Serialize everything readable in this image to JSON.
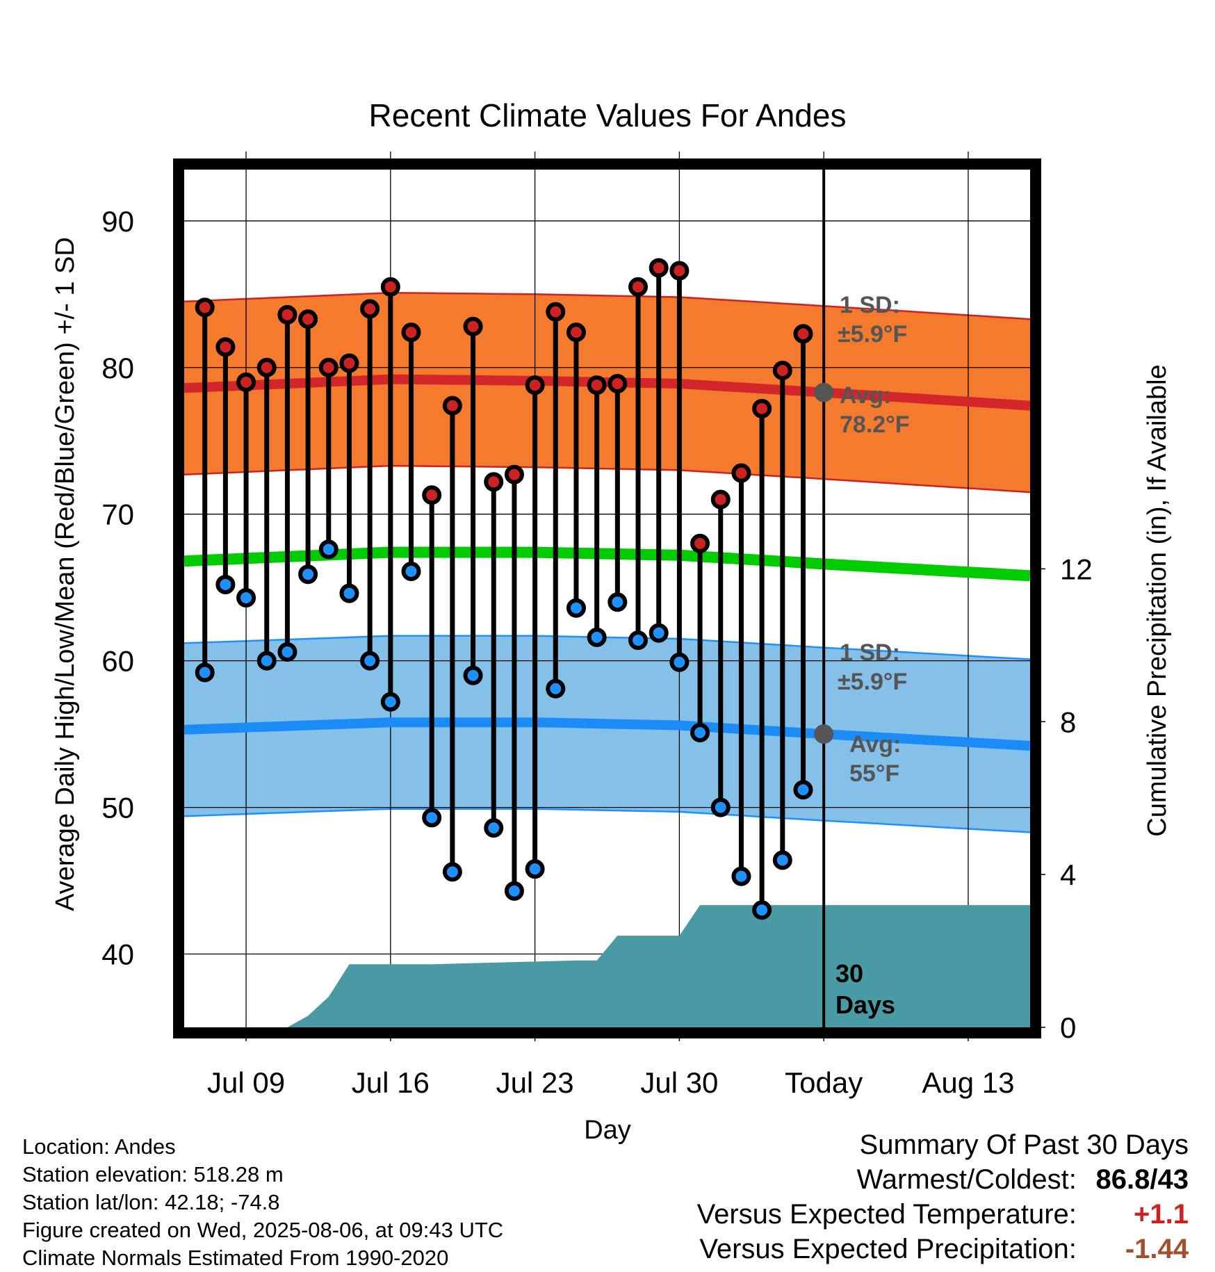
{
  "chart_data": {
    "type": "line",
    "title": "Recent Climate Values For Andes",
    "xlabel": "Day",
    "ylabel": "Average Daily High/Low/Mean (Red/Blue/Green) +/- 1 SD",
    "y2label": "Cumulative Precipitation (in), If Available",
    "ylim": [
      35,
      93.5
    ],
    "y_ticks": [
      40,
      50,
      60,
      70,
      80,
      90
    ],
    "y2lim": [
      0,
      22.45
    ],
    "y2_ticks": [
      0,
      4,
      8,
      12
    ],
    "x_tick_labels": [
      "Jul 09",
      "Jul 16",
      "Jul 23",
      "Jul 30",
      "Today",
      "Aug 13"
    ],
    "x_start": "2025-07-06",
    "x_end": "2025-08-16",
    "today": "2025-08-06",
    "grid": true,
    "daily_high": {
      "dates": [
        "2025-07-07",
        "2025-07-08",
        "2025-07-09",
        "2025-07-10",
        "2025-07-11",
        "2025-07-12",
        "2025-07-13",
        "2025-07-14",
        "2025-07-15",
        "2025-07-16",
        "2025-07-17",
        "2025-07-18",
        "2025-07-19",
        "2025-07-20",
        "2025-07-21",
        "2025-07-22",
        "2025-07-23",
        "2025-07-24",
        "2025-07-25",
        "2025-07-26",
        "2025-07-27",
        "2025-07-28",
        "2025-07-29",
        "2025-07-30",
        "2025-07-31",
        "2025-08-01",
        "2025-08-02",
        "2025-08-03",
        "2025-08-04",
        "2025-08-05"
      ],
      "values": [
        84.1,
        81.4,
        79.0,
        80.0,
        83.6,
        83.3,
        80.0,
        80.3,
        84.0,
        85.5,
        82.4,
        71.3,
        77.4,
        82.8,
        72.2,
        72.7,
        78.8,
        83.8,
        82.4,
        78.8,
        78.9,
        85.5,
        86.8,
        86.6,
        68.0,
        71.0,
        72.8,
        77.2,
        79.8,
        82.3
      ]
    },
    "daily_low": {
      "dates": [
        "2025-07-07",
        "2025-07-08",
        "2025-07-09",
        "2025-07-10",
        "2025-07-11",
        "2025-07-12",
        "2025-07-13",
        "2025-07-14",
        "2025-07-15",
        "2025-07-16",
        "2025-07-17",
        "2025-07-18",
        "2025-07-19",
        "2025-07-20",
        "2025-07-21",
        "2025-07-22",
        "2025-07-23",
        "2025-07-24",
        "2025-07-25",
        "2025-07-26",
        "2025-07-27",
        "2025-07-28",
        "2025-07-29",
        "2025-07-30",
        "2025-07-31",
        "2025-08-01",
        "2025-08-02",
        "2025-08-03",
        "2025-08-04",
        "2025-08-05"
      ],
      "values": [
        59.2,
        65.2,
        64.3,
        60.0,
        60.6,
        65.9,
        67.6,
        64.6,
        60.0,
        57.2,
        66.1,
        49.3,
        45.6,
        59.0,
        48.6,
        44.3,
        45.8,
        58.1,
        63.6,
        61.6,
        64.0,
        61.4,
        61.9,
        59.9,
        55.1,
        50.0,
        45.3,
        43.0,
        46.4,
        51.2
      ]
    },
    "normal_high": {
      "dates": [
        "2025-07-06",
        "2025-07-16",
        "2025-07-23",
        "2025-07-30",
        "2025-08-06",
        "2025-08-16"
      ],
      "values": [
        78.6,
        79.2,
        79.1,
        78.9,
        78.3,
        77.4
      ],
      "sd": 5.9
    },
    "normal_low": {
      "dates": [
        "2025-07-06",
        "2025-07-16",
        "2025-07-23",
        "2025-07-30",
        "2025-08-06",
        "2025-08-16"
      ],
      "values": [
        55.3,
        55.8,
        55.8,
        55.6,
        55.0,
        54.2
      ],
      "sd": 5.9
    },
    "normal_mean": {
      "dates": [
        "2025-07-06",
        "2025-07-16",
        "2025-07-23",
        "2025-07-30",
        "2025-08-06",
        "2025-08-16"
      ],
      "values": [
        66.8,
        67.4,
        67.4,
        67.2,
        66.6,
        65.8
      ]
    },
    "cumulative_precip": {
      "dates": [
        "2025-07-08",
        "2025-07-10",
        "2025-07-11",
        "2025-07-12",
        "2025-07-13",
        "2025-07-14",
        "2025-07-18",
        "2025-07-25",
        "2025-07-26",
        "2025-07-27",
        "2025-07-30",
        "2025-07-31",
        "2025-08-06"
      ],
      "values": [
        0,
        0,
        0,
        0.3,
        0.8,
        1.65,
        1.65,
        1.75,
        1.75,
        2.4,
        2.4,
        3.2,
        3.2
      ]
    },
    "high_band_label": "1 SD:",
    "high_band_sd_label": "±5.9°F",
    "high_avg_label": "Avg:",
    "high_avg_value": "78.2°F",
    "low_band_label": "1 SD:",
    "low_band_sd_label": "±5.9°F",
    "low_avg_label": "Avg:",
    "low_avg_value": "55°F",
    "days_label": "30",
    "days_label2": "Days",
    "colors": {
      "high": "#cc2222",
      "high_band": "#f47a2e",
      "high_avg": "#d2262a",
      "low": "#1e90ff",
      "low_band": "#84c0e8",
      "low_avg": "#1b8cf5",
      "mean": "#00cc00",
      "precip": "#4a9aa5",
      "avg_marker": "#555555"
    }
  },
  "footer": {
    "location": "Location: Andes",
    "elevation": "Station elevation: 518.28 m",
    "latlon": "Station lat/lon: 42.18; -74.8",
    "created": "Figure created on Wed, 2025-08-06, at 09:43 UTC",
    "normals": "Climate Normals Estimated From 1990-2020"
  },
  "summary": {
    "heading": "Summary Of Past 30 Days",
    "warmest_coldest_label": "Warmest/Coldest:",
    "warmest_coldest_value": "86.8/43",
    "temp_label": "Versus Expected Temperature:",
    "temp_value": "+1.1",
    "precip_label": "Versus Expected Precipitation:",
    "precip_value": "-1.44",
    "temp_color": "#cc2222",
    "precip_color": "#a0522d"
  }
}
